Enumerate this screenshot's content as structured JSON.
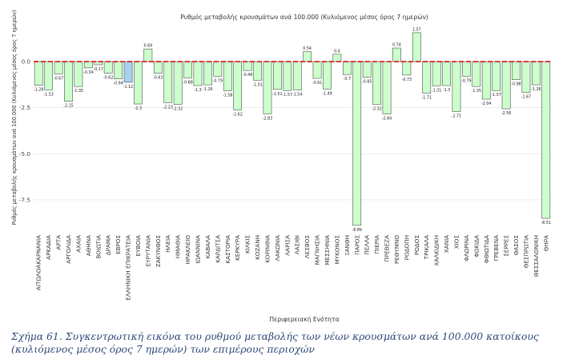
{
  "chart_data": {
    "type": "bar",
    "title": "Ρυθμός μεταβολής κρουσμάτων ανά 100.000 (Κυλιόμενος μέσος όρος 7 ημερών)",
    "xlabel": "Περιφερειακή Ενότητα",
    "ylabel": "Ρυθμός μεταβολής κρουσμάτων ανά 100.000 (Κυλιόμενος μέσος όρος 7 ημερών)",
    "ylim": [
      -9.2,
      2.0
    ],
    "yticks": [
      0,
      -2.5,
      -5,
      -7.5
    ],
    "ytick_labels": [
      "0.0",
      "-2.5",
      "-5.0",
      "-7.5"
    ],
    "reference_line": 0,
    "grid": true,
    "colors": {
      "bar": "#ccffcc",
      "bar_highlight": "#a8d0ef",
      "bar_stroke": "#2e2e2e",
      "reference": "#e03030",
      "grid": "#e6e6e6"
    },
    "highlight_category": "ΕΛΛΗΝΙΚΗ ΕΠΙΚΡΑΤΕΙΑ",
    "categories": [
      "ΑΙΤΩΛΟΑΚΑΡΝΑΝΙΑ",
      "ΑΡΚΑΔΙΑ",
      "ΑΡΤΑ",
      "ΑΡΓΟΛΙΔΑ",
      "ΑΧΑΙΑ",
      "ΑΘΗΝΑ",
      "ΒΟΙΩΤΙΑ",
      "ΔΡΑΜΑ",
      "ΕΒΡΟΣ",
      "ΕΛΛΗΝΙΚΗ ΕΠΙΚΡΑΤΕΙΑ",
      "ΕΥΒΟΙΑ",
      "ΕΥΡΥΤΑΝΙΑ",
      "ΖΑΚΥΝΘΟΣ",
      "ΗΛΕΙΑ",
      "ΗΜΑΘΙΑ",
      "ΗΡΑΚΛΕΙΟ",
      "ΙΩΑΝΝΙΝΑ",
      "ΚΑΒΑΛΑ",
      "ΚΑΡΔΙΤΣΑ",
      "ΚΑΣΤΟΡΙΑ",
      "ΚΕΡΚΥΡΑ",
      "ΚΙΛΚΙΣ",
      "ΚΟΖΑΝΗ",
      "ΚΟΡΙΝΘΙΑ",
      "ΛΑΚΩΝΙΑ",
      "ΛΑΡΙΣΑ",
      "ΛΑΣΙΘΙ",
      "ΛΕΣΒΟΣ",
      "ΜΑΓΝΗΣΙΑ",
      "ΜΕΣΣΗΝΙΑ",
      "ΜΥΚΟΝΟΣ",
      "ΞΑΝΘΗ",
      "ΠΑΡΟΣ",
      "ΠΕΛΛΑ",
      "ΠΙΕΡΙΑ",
      "ΠΡΕΒΕΖΑ",
      "ΡΕΘΥΜΝΟ",
      "ΡΟΔΟΠΗ",
      "ΡΟΔΟΣ",
      "ΤΡΙΚΑΛΑ",
      "ΧΑΛΚΙΔΙΚΗ",
      "ΧΑΝΙΑ",
      "ΧΙΟΣ",
      "ΦΛΩΡΙΝΑ",
      "ΦΩΚΙΔΑ",
      "ΦΘΙΩΤΙΔΑ",
      "ΓΡΕΒΕΝΑ",
      "ΣΕΡΡΕΣ",
      "ΘΑΣΟΣ",
      "ΘΕΣΠΡΩΤΙΑ",
      "ΘΕΣΣΑΛΟΝΙΚΗ",
      "ΘΗΡΑ"
    ],
    "values": [
      -1.28,
      -1.53,
      -0.67,
      -2.15,
      -1.35,
      -0.34,
      -0.17,
      -0.62,
      -0.94,
      -1.12,
      -2.3,
      0.69,
      -0.63,
      -2.23,
      -2.32,
      -0.88,
      -1.3,
      -1.26,
      -0.79,
      -1.58,
      -2.62,
      -0.48,
      -1.01,
      -2.83,
      -1.51,
      -1.57,
      -1.54,
      0.54,
      -0.91,
      -1.49,
      0.4,
      -0.7,
      -8.89,
      -0.85,
      -2.32,
      -2.84,
      0.74,
      -0.73,
      1.57,
      -1.71,
      -1.31,
      -1.3,
      -2.71,
      -0.79,
      -1.35,
      -2.04,
      -1.57,
      -2.56,
      -0.98,
      -1.67,
      -1.26,
      -8.51
    ],
    "value_labels": [
      "-1.28",
      "-1.53",
      "-0.67",
      "-2.15",
      "-1.35",
      "-0.34",
      "-0.17",
      "-0.62",
      "-0.94",
      "-1.12",
      "-2.3",
      "0.69",
      "-0.63",
      "-2.23",
      "-2.32",
      "-0.88",
      "-1.3",
      "-1.26",
      "-0.79",
      "-1.58",
      "-2.62",
      "-0.48",
      "-1.01",
      "-2.83",
      "-1.51",
      "-1.57",
      "-1.54",
      "0.54",
      "-0.91",
      "-1.49",
      "0.4",
      "-0.7",
      "-8.89",
      "-0.85",
      "-2.32",
      "-2.84",
      "0.74",
      "-0.73",
      "1.57",
      "-1.71",
      "-1.31",
      "-1.3",
      "-2.71",
      "-0.79",
      "-1.35",
      "-2.04",
      "-1.57",
      "-2.56",
      "-0.98",
      "-1.67",
      "-1.26",
      "-8.51"
    ]
  },
  "caption": "Σχήμα 61. Συγκεντρωτική εικόνα του ρυθμού μεταβολής των νέων κρουσμάτων ανά 100.000 κατοίκους (κυλιόμενος μέσος όρος 7 ημερών) των επιμέρους περιοχών"
}
